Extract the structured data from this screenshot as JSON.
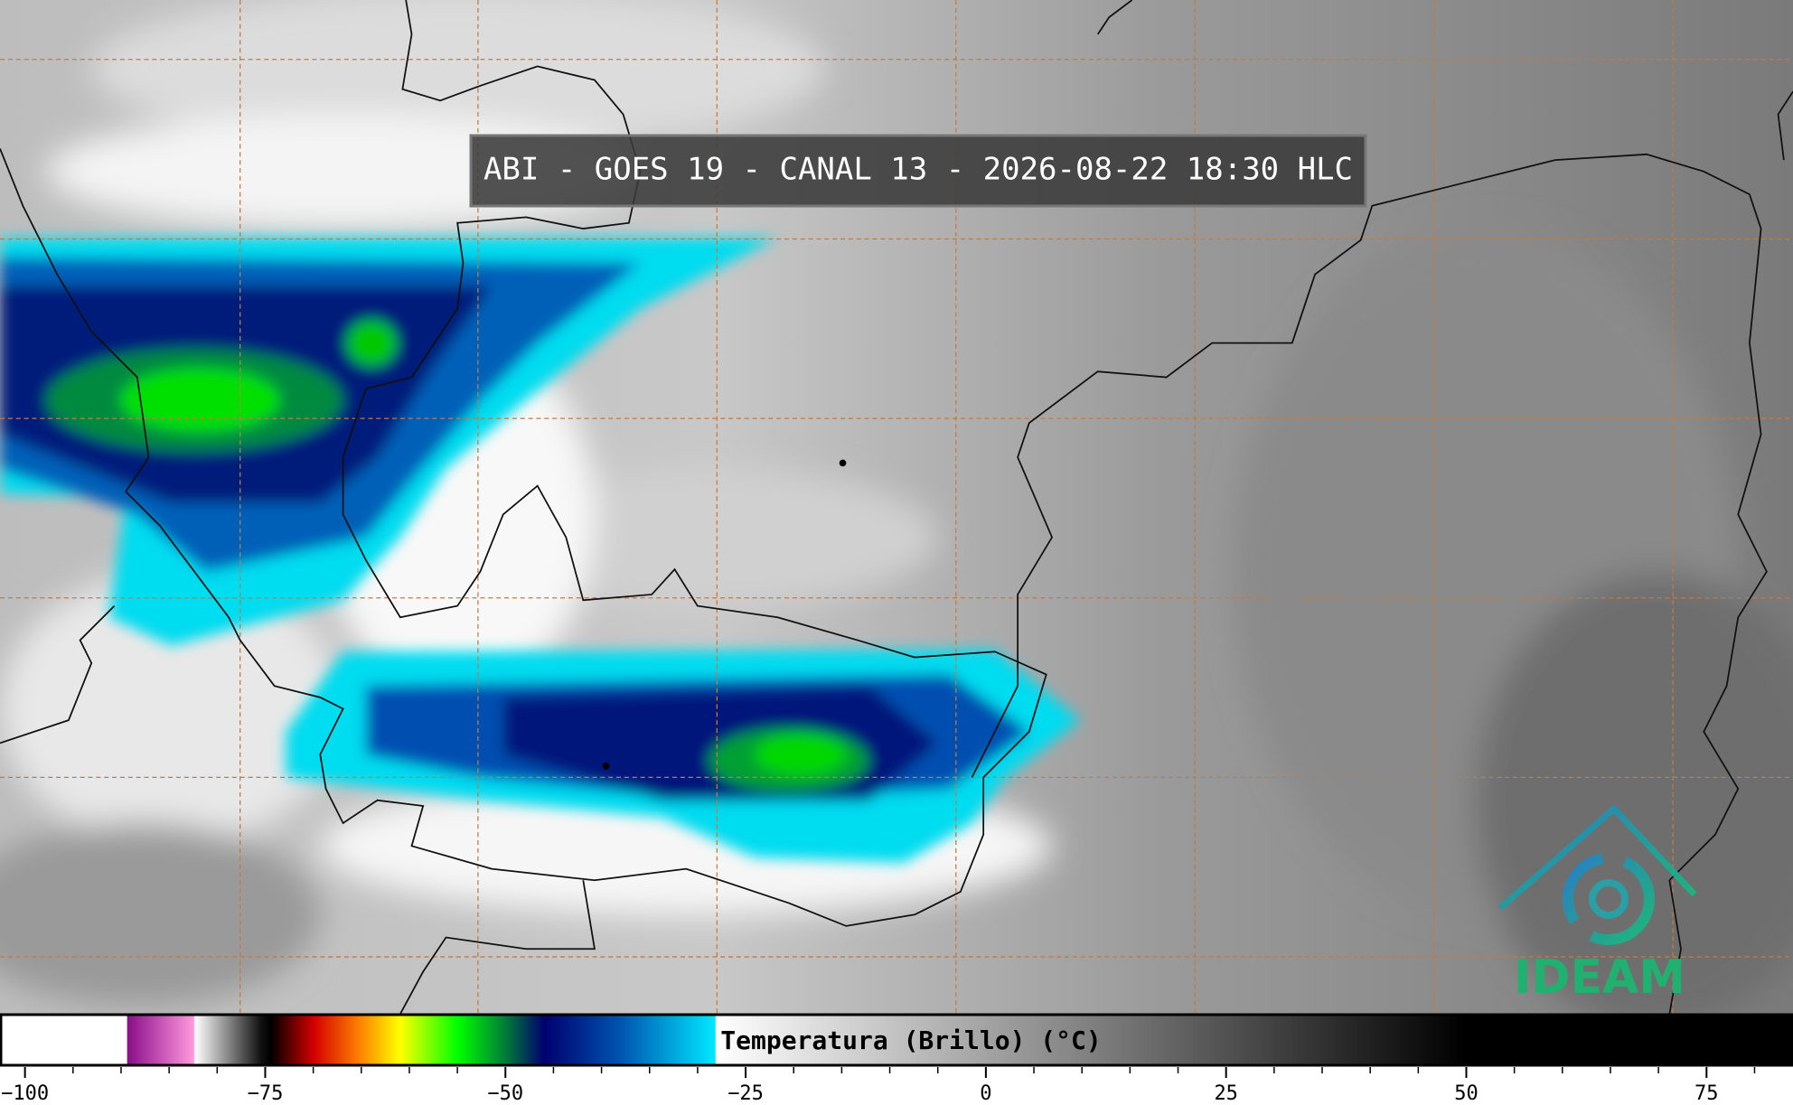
{
  "header": {
    "title": "ABI - GOES 19 - CANAL 13 - 2026-08-22 18:30 HLC"
  },
  "logo": {
    "text": "IDEAM"
  },
  "colorbar": {
    "label": "Temperatura (Brillo) (°C)",
    "clim": [
      -102.6,
      84
    ],
    "ticks": [
      {
        "value": -100,
        "label": "−100"
      },
      {
        "value": -75,
        "label": "−75"
      },
      {
        "value": -50,
        "label": "−50"
      },
      {
        "value": -25,
        "label": "−25"
      },
      0,
      25,
      50,
      75
    ],
    "minor_tick_step": 5,
    "colormap": [
      {
        "value": -102.6,
        "color": "#ffffff"
      },
      {
        "value": -89.5,
        "color": "#ffffff"
      },
      {
        "value": -89.4,
        "color": "#8a0f8a"
      },
      {
        "value": -82.5,
        "color": "#ff99dd"
      },
      {
        "value": -82.4,
        "color": "#ffffff"
      },
      {
        "value": -75.5,
        "color": "#111111"
      },
      {
        "value": -74.5,
        "color": "#000000"
      },
      {
        "value": -70,
        "color": "#d40000"
      },
      {
        "value": -65,
        "color": "#ff8800"
      },
      {
        "value": -61,
        "color": "#ffff00"
      },
      {
        "value": -55,
        "color": "#00ff00"
      },
      {
        "value": -50,
        "color": "#007a3a"
      },
      {
        "value": -46,
        "color": "#00006e"
      },
      {
        "value": -38,
        "color": "#0055b0"
      },
      {
        "value": -28.2,
        "color": "#00e8ff"
      },
      {
        "value": -28.1,
        "color": "#ffffff"
      },
      {
        "value": 50,
        "color": "#000000"
      },
      {
        "value": 84,
        "color": "#000000"
      }
    ]
  }
}
